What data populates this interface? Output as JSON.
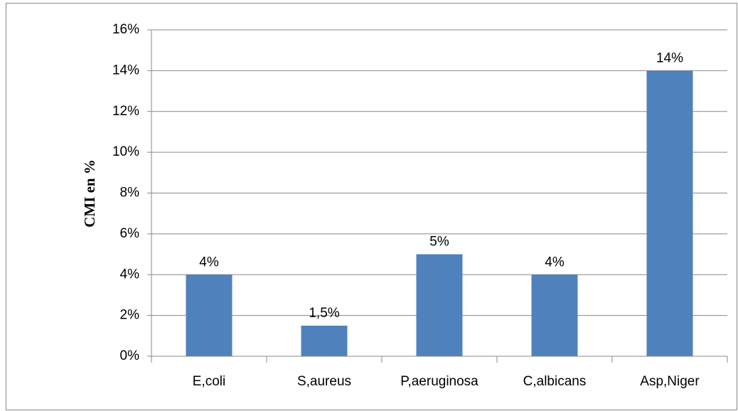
{
  "chart_data": {
    "type": "bar",
    "y_axis_label": "CMI en %",
    "categories": [
      "E,coli",
      "S,aureus",
      "P,aeruginosa",
      "C,albicans",
      "Asp,Niger"
    ],
    "values": [
      4,
      1.5,
      5,
      4,
      14
    ],
    "value_labels": [
      "4%",
      "1,5%",
      "5%",
      "4%",
      "14%"
    ],
    "color": "#4f81bd",
    "ylim": [
      0,
      16
    ],
    "yticks": [
      {
        "value": 0,
        "label": "0%"
      },
      {
        "value": 2,
        "label": "2%"
      },
      {
        "value": 4,
        "label": "4%"
      },
      {
        "value": 6,
        "label": "6%"
      },
      {
        "value": 8,
        "label": "8%"
      },
      {
        "value": 10,
        "label": "10%"
      },
      {
        "value": 12,
        "label": "12%"
      },
      {
        "value": 14,
        "label": "14%"
      },
      {
        "value": 16,
        "label": "16%"
      }
    ],
    "grid": true
  }
}
